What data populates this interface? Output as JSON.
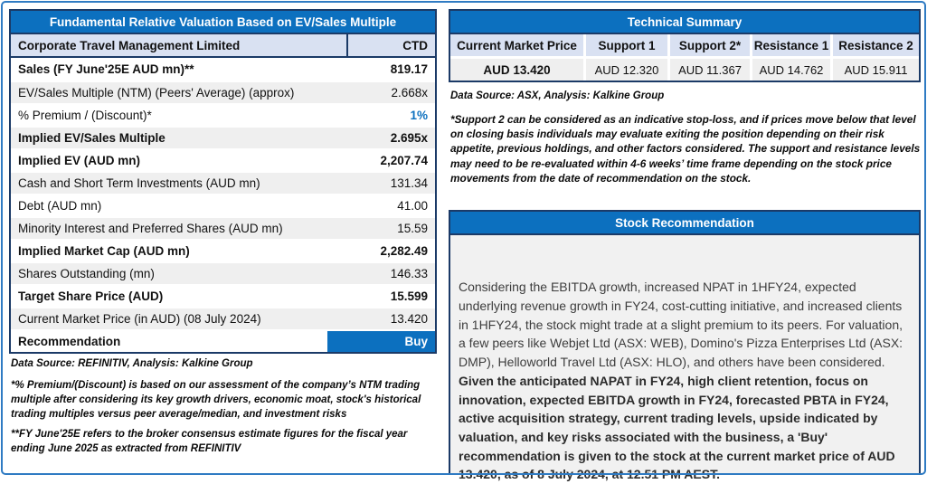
{
  "colors": {
    "accent_blue": "#0C70BF",
    "navy_border": "#1B3A67",
    "lavender_header": "#D9E1F2",
    "row_gray": "#EFEFEF",
    "frame_blue": "#2F7BC3"
  },
  "valuation": {
    "title": "Fundamental Relative Valuation Based on EV/Sales Multiple",
    "company": "Corporate Travel Management Limited",
    "ticker": "CTD",
    "rows": [
      {
        "label": "Sales (FY June'25E AUD mn)**",
        "value": "819.17"
      },
      {
        "label": "EV/Sales Multiple (NTM)  (Peers' Average) (approx)",
        "value": "2.668x"
      },
      {
        "label": "% Premium / (Discount)*",
        "value": "1%"
      },
      {
        "label": "Implied EV/Sales Multiple",
        "value": "2.695x"
      },
      {
        "label": "Implied EV (AUD mn)",
        "value": "2,207.74"
      },
      {
        "label": "Cash and Short Term Investments (AUD mn)",
        "value": "131.34"
      },
      {
        "label": "Debt (AUD mn)",
        "value": "41.00"
      },
      {
        "label": "Minority Interest and Preferred Shares (AUD mn)",
        "value": "15.59"
      },
      {
        "label": "Implied Market Cap (AUD mn)",
        "value": "2,282.49"
      },
      {
        "label": "Shares Outstanding (mn)",
        "value": "146.33"
      },
      {
        "label": "Target Share Price (AUD)",
        "value": "15.599"
      },
      {
        "label": "Current Market Price (in AUD) (08 July 2024)",
        "value": "13.420"
      }
    ],
    "recommendation_label": "Recommendation",
    "recommendation_value": "Buy",
    "source": "Data Source: REFINITIV, Analysis: Kalkine Group",
    "footnote1": "*% Premium/(Discount) is based on our assessment of the company’s NTM trading multiple after considering its key growth drivers, economic moat, stock's historical trading multiples versus peer average/median, and investment risks",
    "footnote2": "**FY June'25E refers to the broker consensus estimate figures for the fiscal year ending June 2025 as extracted from REFINITIV"
  },
  "technical": {
    "title": "Technical Summary",
    "columns": [
      "Current Market Price",
      "Support 1",
      "Support 2*",
      "Resistance 1",
      "Resistance 2"
    ],
    "values": [
      "AUD 13.420",
      "AUD 12.320",
      "AUD 11.367",
      "AUD 14.762",
      "AUD 15.911"
    ],
    "source": "Data Source: ASX, Analysis: Kalkine Group",
    "footnote": "*Support 2 can be considered as an indicative stop-loss, and if prices move below that level on closing basis individuals may evaluate exiting the position depending on their risk appetite, previous holdings, and other factors considered. The support and resistance levels may need to be re-evaluated within 4-6 weeks’ time frame depending on the stock price movements from the date of recommendation on the stock."
  },
  "recommendation": {
    "title": "Stock Recommendation",
    "body_regular": "Considering the EBITDA growth, increased NPAT in 1HFY24, expected underlying revenue growth in FY24, cost-cutting initiative, and increased clients in 1HFY24, the stock might trade at a slight premium to its peers. For valuation, a few peers like Webjet Ltd (ASX: WEB), Domino's Pizza Enterprises Ltd (ASX: DMP), Helloworld Travel Ltd (ASX: HLO), and others have been considered. ",
    "body_bold": "Given the anticipated NAPAT in FY24, high client retention, focus on innovation, expected EBITDA growth in FY24, forecasted PBTA in FY24, active acquisition strategy, current trading levels, upside indicated by valuation, and key risks associated with the business, a 'Buy' recommendation is given to the stock at the current market price of AUD 13.420, as of 8 July 2024, at 12.51 PM AEST."
  }
}
